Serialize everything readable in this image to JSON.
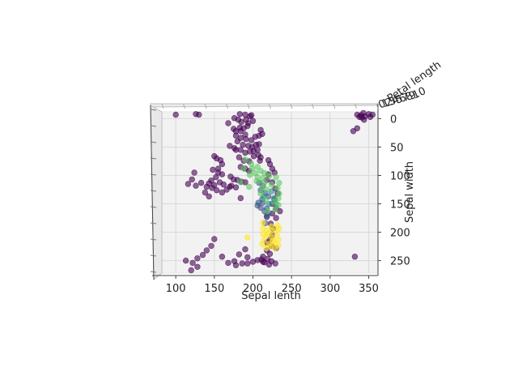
{
  "chart_data": {
    "type": "scatter",
    "projection": "3d",
    "xlabel": "Sepal lenth",
    "ylabel": "Sepal width",
    "zlabel": "Petal length",
    "xlim": [
      82,
      362
    ],
    "ylim": [
      -12,
      272
    ],
    "x_ticks": [
      100,
      150,
      200,
      250,
      300,
      350
    ],
    "y_ticks": [
      0,
      50,
      100,
      150,
      200,
      250
    ],
    "z_tick_labels": [
      "0",
      "1",
      "2",
      "3",
      "4",
      "5",
      "6",
      "7",
      "8",
      "9",
      "10"
    ],
    "grid": true,
    "colors": {
      "cluster_purple": "#440154",
      "cluster_blue": "#3b528b",
      "cluster_teal": "#21918c",
      "cluster_green": "#5ec962",
      "cluster_yellow": "#fde725",
      "pane": "#f2f2f2",
      "grid": "#d9d9d9"
    },
    "series": [
      {
        "color": "#440154",
        "points": [
          [
            100,
            -7
          ],
          [
            126,
            -8
          ],
          [
            130,
            -7
          ],
          [
            183,
            -8
          ],
          [
            190,
            -7
          ],
          [
            198,
            -6
          ],
          [
            196,
            -4
          ],
          [
            176,
            -1
          ],
          [
            181,
            2
          ],
          [
            191,
            2
          ],
          [
            185,
            6
          ],
          [
            200,
            4
          ],
          [
            194,
            8
          ],
          [
            168,
            8
          ],
          [
            175,
            18
          ],
          [
            183,
            16
          ],
          [
            188,
            17
          ],
          [
            193,
            13
          ],
          [
            178,
            22
          ],
          [
            184,
            22
          ],
          [
            190,
            28
          ],
          [
            178,
            30
          ],
          [
            184,
            34
          ],
          [
            191,
            36
          ],
          [
            198,
            38
          ],
          [
            203,
            32
          ],
          [
            208,
            30
          ],
          [
            210,
            20
          ],
          [
            212,
            27
          ],
          [
            180,
            40
          ],
          [
            187,
            46
          ],
          [
            194,
            48
          ],
          [
            199,
            50
          ],
          [
            204,
            46
          ],
          [
            208,
            45
          ],
          [
            184,
            55
          ],
          [
            190,
            60
          ],
          [
            196,
            58
          ],
          [
            201,
            57
          ],
          [
            201,
            66
          ],
          [
            207,
            64
          ],
          [
            182,
            68
          ],
          [
            188,
            74
          ],
          [
            195,
            75
          ],
          [
            184,
            85
          ],
          [
            190,
            88
          ],
          [
            195,
            92
          ],
          [
            170,
            48
          ],
          [
            176,
            52
          ],
          [
            206,
            55
          ],
          [
            178,
            55
          ],
          [
            150,
            66
          ],
          [
            153,
            70
          ],
          [
            158,
            73
          ],
          [
            160,
            80
          ],
          [
            155,
            88
          ],
          [
            148,
            90
          ],
          [
            155,
            95
          ],
          [
            160,
            98
          ],
          [
            152,
            103
          ],
          [
            146,
            109
          ],
          [
            143,
            114
          ],
          [
            150,
            117
          ],
          [
            157,
            112
          ],
          [
            162,
            116
          ],
          [
            140,
            120
          ],
          [
            147,
            122
          ],
          [
            153,
            126
          ],
          [
            160,
            130
          ],
          [
            166,
            125
          ],
          [
            170,
            120
          ],
          [
            171,
            102
          ],
          [
            175,
            107
          ],
          [
            180,
            108
          ],
          [
            185,
            111
          ],
          [
            190,
            112
          ],
          [
            172,
            118
          ],
          [
            178,
            121
          ],
          [
            124,
            95
          ],
          [
            121,
            107
          ],
          [
            116,
            115
          ],
          [
            133,
            113
          ],
          [
            126,
            118
          ],
          [
            138,
            130
          ],
          [
            143,
            137
          ],
          [
            184,
            140
          ],
          [
            210,
            68
          ],
          [
            209,
            74
          ],
          [
            220,
            73
          ],
          [
            222,
            80
          ],
          [
            225,
            88
          ],
          [
            228,
            95
          ],
          [
            220,
            98
          ],
          [
            218,
            108
          ],
          [
            225,
            112
          ],
          [
            229,
            123
          ],
          [
            232,
            132
          ],
          [
            228,
            142
          ],
          [
            225,
            150
          ],
          [
            230,
            158
          ],
          [
            235,
            163
          ],
          [
            225,
            167
          ],
          [
            218,
            173
          ],
          [
            230,
            175
          ],
          [
            223,
            185
          ],
          [
            226,
            194
          ],
          [
            225,
            205
          ],
          [
            222,
            213
          ],
          [
            218,
            218
          ],
          [
            224,
            224
          ],
          [
            230,
            228
          ],
          [
            218,
            232
          ],
          [
            222,
            238
          ],
          [
            213,
            243
          ],
          [
            219,
            247
          ],
          [
            224,
            251
          ],
          [
            229,
            255
          ],
          [
            221,
            257
          ],
          [
            215,
            253
          ],
          [
            211,
            248
          ],
          [
            150,
            212
          ],
          [
            146,
            224
          ],
          [
            140,
            232
          ],
          [
            135,
            240
          ],
          [
            128,
            246
          ],
          [
            122,
            254
          ],
          [
            128,
            261
          ],
          [
            113,
            250
          ],
          [
            120,
            267
          ],
          [
            190,
            230
          ],
          [
            193,
            244
          ],
          [
            182,
            239
          ],
          [
            176,
            251
          ],
          [
            186,
            255
          ],
          [
            193,
            255
          ],
          [
            200,
            252
          ],
          [
            206,
            249
          ],
          [
            213,
            252
          ],
          [
            168,
            254
          ],
          [
            178,
            258
          ],
          [
            160,
            243
          ],
          [
            335,
            -7
          ],
          [
            340,
            -6
          ],
          [
            345,
            -4
          ],
          [
            350,
            -8
          ],
          [
            352,
            -3
          ],
          [
            355,
            -7
          ],
          [
            343,
            -10
          ],
          [
            338,
            -3
          ],
          [
            344,
            2
          ],
          [
            341,
            -2
          ],
          [
            335,
            17
          ],
          [
            330,
            22
          ],
          [
            332,
            243
          ]
        ]
      },
      {
        "color": "#3b528b",
        "points": [
          [
            208,
            113
          ],
          [
            213,
            118
          ],
          [
            210,
            126
          ],
          [
            216,
            131
          ],
          [
            220,
            137
          ],
          [
            212,
            142
          ],
          [
            207,
            148
          ],
          [
            213,
            148
          ],
          [
            218,
            158
          ],
          [
            215,
            163
          ],
          [
            220,
            167
          ],
          [
            210,
            157
          ],
          [
            206,
            153
          ],
          [
            218,
            170
          ],
          [
            216,
            184
          ]
        ]
      },
      {
        "color": "#21918c",
        "points": [
          [
            224,
            128
          ],
          [
            227,
            140
          ],
          [
            221,
            150
          ],
          [
            230,
            150
          ],
          [
            214,
            137
          ]
        ]
      },
      {
        "color": "#5ec962",
        "points": [
          [
            190,
            72
          ],
          [
            198,
            80
          ],
          [
            199,
            88
          ],
          [
            206,
            85
          ],
          [
            210,
            92
          ],
          [
            215,
            96
          ],
          [
            203,
            96
          ],
          [
            188,
            88
          ],
          [
            196,
            99
          ],
          [
            206,
            103
          ],
          [
            213,
            105
          ],
          [
            221,
            101
          ],
          [
            230,
            103
          ],
          [
            234,
            113
          ],
          [
            232,
            122
          ],
          [
            234,
            132
          ],
          [
            233,
            140
          ],
          [
            233,
            152
          ],
          [
            229,
            160
          ],
          [
            219,
            163
          ],
          [
            216,
            143
          ],
          [
            218,
            125
          ],
          [
            212,
            121
          ],
          [
            215,
            112
          ],
          [
            205,
            110
          ],
          [
            195,
            120
          ],
          [
            184,
            112
          ],
          [
            210,
            132
          ],
          [
            224,
            116
          ],
          [
            227,
            146
          ]
        ]
      },
      {
        "color": "#fde725",
        "points": [
          [
            213,
            193
          ],
          [
            218,
            196
          ],
          [
            224,
            198
          ],
          [
            230,
            197
          ],
          [
            234,
            194
          ],
          [
            213,
            203
          ],
          [
            217,
            207
          ],
          [
            225,
            209
          ],
          [
            231,
            205
          ],
          [
            233,
            213
          ],
          [
            228,
            218
          ],
          [
            221,
            220
          ],
          [
            214,
            214
          ],
          [
            212,
            221
          ],
          [
            223,
            225
          ],
          [
            229,
            228
          ],
          [
            233,
            223
          ],
          [
            217,
            228
          ],
          [
            213,
            183
          ],
          [
            224,
            190
          ],
          [
            232,
            188
          ],
          [
            220,
            203
          ],
          [
            226,
            215
          ],
          [
            193,
            209
          ]
        ]
      }
    ]
  }
}
